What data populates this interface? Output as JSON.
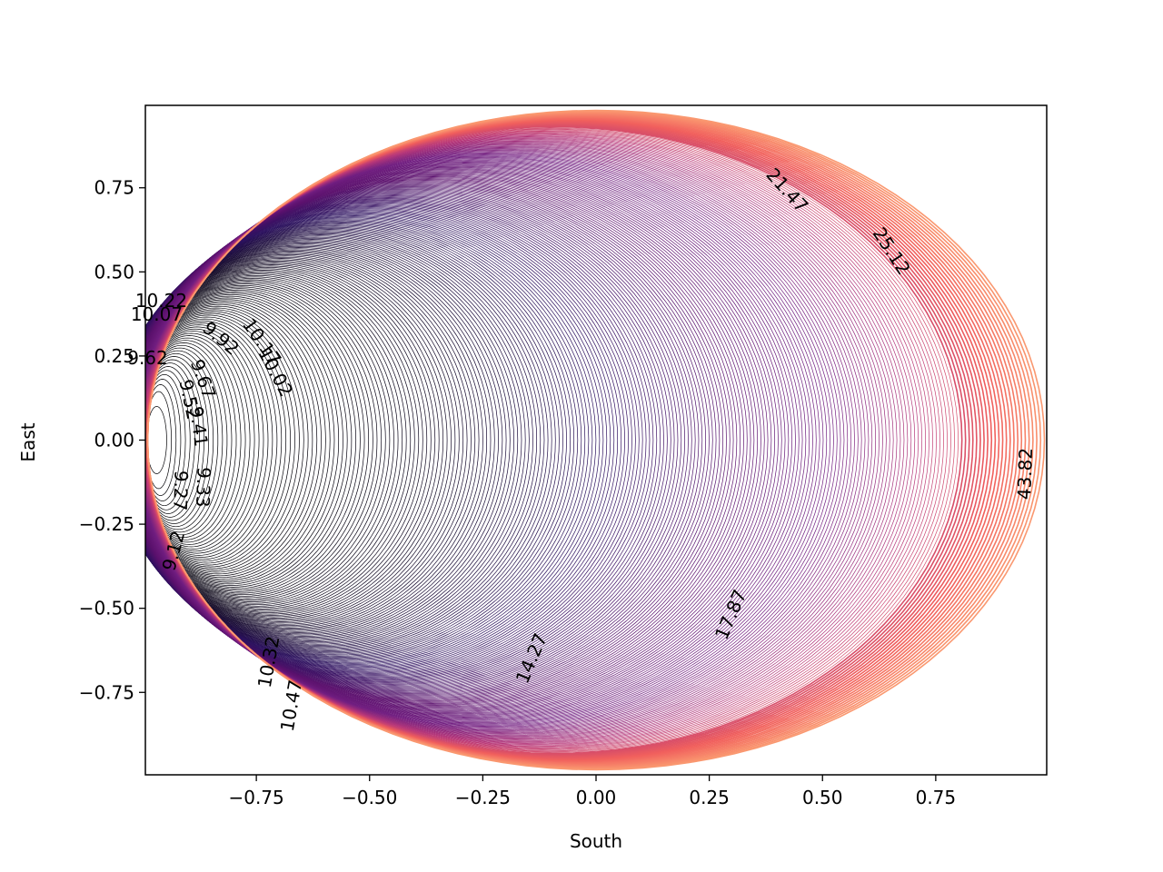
{
  "chart_data": {
    "type": "contour",
    "title": "",
    "xlabel": "South",
    "ylabel": "East",
    "xlim": [
      -0.995,
      0.995
    ],
    "ylim": [
      -0.995,
      0.995
    ],
    "xticks": [
      {
        "value": -0.75,
        "label": "−0.75"
      },
      {
        "value": -0.5,
        "label": "−0.50"
      },
      {
        "value": -0.25,
        "label": "−0.25"
      },
      {
        "value": 0.0,
        "label": "0.00"
      },
      {
        "value": 0.25,
        "label": "0.25"
      },
      {
        "value": 0.5,
        "label": "0.50"
      },
      {
        "value": 0.75,
        "label": "0.75"
      }
    ],
    "yticks": [
      {
        "value": 0.75,
        "label": "0.75"
      },
      {
        "value": 0.5,
        "label": "0.50"
      },
      {
        "value": 0.25,
        "label": "0.25"
      },
      {
        "value": 0.0,
        "label": "0.00"
      },
      {
        "value": -0.25,
        "label": "−0.25"
      },
      {
        "value": -0.5,
        "label": "−0.50"
      },
      {
        "value": -0.75,
        "label": "−0.75"
      }
    ],
    "colormap": "magma",
    "colormap_stops": [
      "#000004",
      "#2c115f",
      "#5c126e",
      "#721f81",
      "#b73779",
      "#f1605d",
      "#feb078"
    ],
    "grid": false,
    "contour_labels": [
      {
        "text": "21.47",
        "x": 0.42,
        "y": 0.74,
        "rotation": 48
      },
      {
        "text": "25.12",
        "x": 0.65,
        "y": 0.56,
        "rotation": 57
      },
      {
        "text": "43.82",
        "x": 0.95,
        "y": -0.1,
        "rotation": -88
      },
      {
        "text": "17.87",
        "x": 0.3,
        "y": -0.52,
        "rotation": -67
      },
      {
        "text": "14.27",
        "x": -0.14,
        "y": -0.65,
        "rotation": -67
      },
      {
        "text": "10.22",
        "x": -0.96,
        "y": 0.41,
        "rotation": 0
      },
      {
        "text": "10.07",
        "x": -0.97,
        "y": 0.37,
        "rotation": 0
      },
      {
        "text": "10.17",
        "x": -0.74,
        "y": 0.29,
        "rotation": 55
      },
      {
        "text": "9.92",
        "x": -0.83,
        "y": 0.3,
        "rotation": 40
      },
      {
        "text": "10.02",
        "x": -0.71,
        "y": 0.2,
        "rotation": 62
      },
      {
        "text": "9.62",
        "x": -0.99,
        "y": 0.24,
        "rotation": 0
      },
      {
        "text": "9.67",
        "x": -0.87,
        "y": 0.18,
        "rotation": 70
      },
      {
        "text": "9.52",
        "x": -0.9,
        "y": 0.12,
        "rotation": 78
      },
      {
        "text": "9.41",
        "x": -0.88,
        "y": 0.04,
        "rotation": 82
      },
      {
        "text": "9.33",
        "x": -0.87,
        "y": -0.14,
        "rotation": 92
      },
      {
        "text": "9.27",
        "x": -0.92,
        "y": -0.15,
        "rotation": 92
      },
      {
        "text": "9.12",
        "x": -0.93,
        "y": -0.33,
        "rotation": -75
      },
      {
        "text": "10.32",
        "x": -0.72,
        "y": -0.66,
        "rotation": -80
      },
      {
        "text": "10.47",
        "x": -0.67,
        "y": -0.79,
        "rotation": -80
      }
    ]
  }
}
